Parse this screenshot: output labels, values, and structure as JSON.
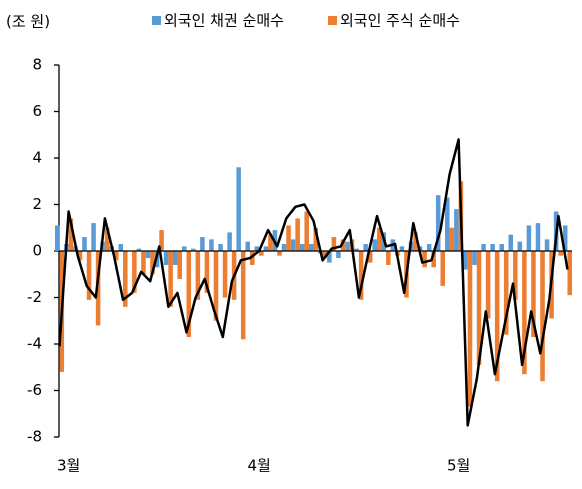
{
  "chart_data": {
    "type": "bar",
    "y_label": "(조 원)",
    "categories": [
      "3월",
      null,
      null,
      null,
      null,
      null,
      null,
      null,
      null,
      null,
      null,
      null,
      null,
      null,
      null,
      null,
      null,
      null,
      null,
      null,
      null,
      "4월",
      null,
      null,
      null,
      null,
      null,
      null,
      null,
      null,
      null,
      null,
      null,
      null,
      null,
      null,
      null,
      null,
      null,
      null,
      null,
      null,
      null,
      "5월",
      null,
      null,
      null,
      null,
      null,
      null,
      null,
      null,
      null,
      null,
      null,
      null,
      null
    ],
    "series": [
      {
        "name": "외국인 채권 순매수",
        "color": "#5b9bd5",
        "values": [
          1.1,
          0.3,
          0.2,
          0.6,
          1.2,
          0.4,
          0.2,
          0.3,
          0,
          0.1,
          -0.3,
          -0.7,
          -0.6,
          -0.6,
          0.2,
          0.1,
          0.6,
          0.5,
          0.3,
          0.8,
          3.6,
          0.4,
          0.2,
          0.2,
          0.9,
          0.3,
          0.5,
          0.3,
          0.3,
          -0.1,
          -0.5,
          -0.3,
          0.4,
          0.1,
          0.3,
          0.5,
          0.8,
          0.5,
          0.2,
          0.4,
          0.2,
          0.3,
          2.4,
          2.3,
          1.8,
          -0.8,
          -0.6,
          0.3,
          0.3,
          0.3,
          0.7,
          0.4,
          1.1,
          1.2,
          0.5,
          1.7,
          1.1
        ]
      },
      {
        "name": "외국인 주식 순매수",
        "color": "#ed7d31",
        "values": [
          -5.2,
          1.4,
          -0.4,
          -2.1,
          -3.2,
          1.0,
          -0.4,
          -2.4,
          -1.8,
          -1.0,
          -1.0,
          0.9,
          -2.4,
          -1.2,
          -3.7,
          -2.1,
          -1.8,
          -3.0,
          -2.0,
          -2.1,
          -3.8,
          -0.6,
          -0.2,
          0.7,
          -0.2,
          1.1,
          1.4,
          1.7,
          1.0,
          -0.3,
          0.6,
          0.5,
          0.5,
          -2.1,
          -0.5,
          1.0,
          -0.6,
          -0.2,
          -2.0,
          0.8,
          -0.7,
          -0.7,
          -1.5,
          1.0,
          3.0,
          -6.7,
          -4.9,
          -2.9,
          -5.6,
          -3.6,
          -2.1,
          -5.3,
          -3.7,
          -5.6,
          -2.9,
          -0.2,
          -1.9
        ]
      },
      {
        "type": "line",
        "color": "#000000",
        "values": [
          -4.1,
          1.7,
          -0.2,
          -1.5,
          -2.0,
          1.4,
          -0.2,
          -2.1,
          -1.8,
          -0.9,
          -1.3,
          0.2,
          -2.4,
          -1.8,
          -3.5,
          -2.0,
          -1.2,
          -2.5,
          -3.7,
          -1.3,
          -0.4,
          -0.3,
          0.0,
          0.9,
          0.2,
          1.4,
          1.9,
          2.0,
          1.3,
          -0.4,
          0.1,
          0.2,
          0.9,
          -2.0,
          -0.2,
          1.5,
          0.2,
          0.3,
          -1.8,
          1.2,
          -0.5,
          -0.4,
          0.9,
          3.3,
          4.8,
          -7.5,
          -5.5,
          -2.6,
          -5.3,
          -3.3,
          -1.4,
          -4.9,
          -2.6,
          -4.4,
          -2.1,
          1.5,
          -0.8
        ]
      }
    ],
    "ylim": [
      -8,
      8
    ],
    "yticks": [
      -8,
      -6,
      -4,
      -2,
      0,
      2,
      4,
      6,
      8
    ]
  }
}
